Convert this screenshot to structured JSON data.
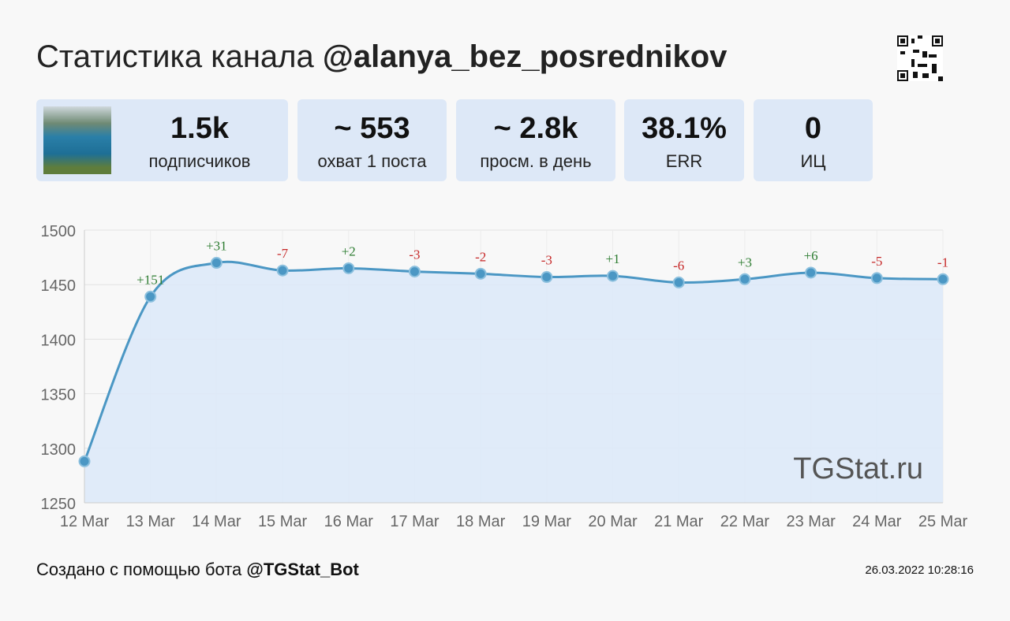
{
  "header": {
    "title_prefix": "Статистика канала",
    "channel": "@alanya_bez_posrednikov"
  },
  "stats": [
    {
      "value": "1.5k",
      "label": "подписчиков"
    },
    {
      "value": "~ 553",
      "label": "охват 1 поста"
    },
    {
      "value": "~ 2.8k",
      "label": "просм. в день"
    },
    {
      "value": "38.1%",
      "label": "ERR"
    },
    {
      "value": "0",
      "label": "ИЦ"
    }
  ],
  "footer": {
    "text": "Создано с помощью бота",
    "bot": "@TGStat_Bot",
    "timestamp": "26.03.2022 10:28:16"
  },
  "chart_data": {
    "type": "area",
    "watermark": "TGStat.ru",
    "categories": [
      "12 Mar",
      "13 Mar",
      "14 Mar",
      "15 Mar",
      "16 Mar",
      "17 Mar",
      "18 Mar",
      "19 Mar",
      "20 Mar",
      "21 Mar",
      "22 Mar",
      "23 Mar",
      "24 Mar",
      "25 Mar"
    ],
    "values": [
      1288,
      1439,
      1470,
      1463,
      1465,
      1462,
      1460,
      1457,
      1458,
      1452,
      1455,
      1461,
      1456,
      1455
    ],
    "labels": [
      "",
      "+151",
      "+31",
      "-7",
      "+2",
      "-3",
      "-2",
      "-3",
      "+1",
      "-6",
      "+3",
      "+6",
      "-5",
      "-1"
    ],
    "yticks": [
      "1250",
      "1300",
      "1350",
      "1400",
      "1450",
      "1500"
    ],
    "ylim": [
      1250,
      1500
    ],
    "colors": {
      "line": "#4b97c4",
      "fill": "#dde9f8",
      "pos": "#2e7d32",
      "neg": "#c62828"
    }
  }
}
